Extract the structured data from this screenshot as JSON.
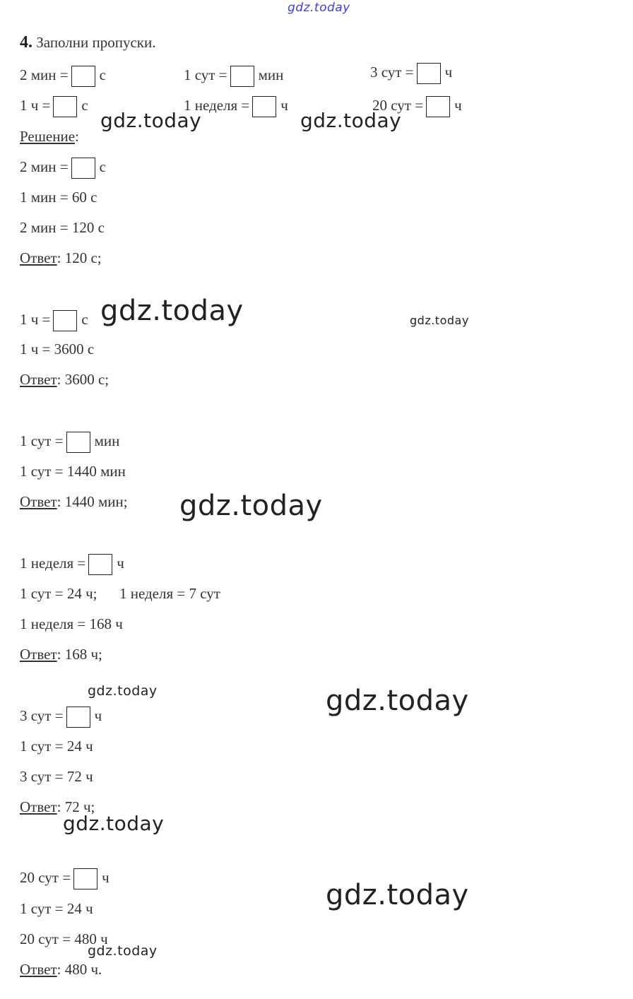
{
  "watermark_text": "gdz.today",
  "task": {
    "number": "4.",
    "title": " Заполни пропуски."
  },
  "exercise": [
    {
      "left": "2 мин =",
      "right": "с"
    },
    {
      "left": "1 сут =",
      "right": "мин"
    },
    {
      "left": "3 сут =",
      "right": "ч"
    },
    {
      "left": "1 ч =",
      "right": "с"
    },
    {
      "left": "1 неделя =",
      "right": "ч"
    },
    {
      "left": "20 сут =",
      "right": "ч"
    }
  ],
  "solution_label": "Решение",
  "solution_colon": ":",
  "answer_label": "Ответ",
  "solutions": [
    {
      "question": {
        "left": "2 мин =",
        "right": "с"
      },
      "steps": [
        "1 мин = 60 с",
        "2 мин = 120 с"
      ],
      "answer": ": 120 с;"
    },
    {
      "question": {
        "left": "1 ч =",
        "right": "с"
      },
      "steps": [
        "1 ч = 3600 с"
      ],
      "answer": ": 3600 с;"
    },
    {
      "question": {
        "left": "1 сут =",
        "right": "мин"
      },
      "steps": [
        "1 сут = 1440 мин"
      ],
      "answer": ": 1440 мин;"
    },
    {
      "question": {
        "left": "1 неделя =",
        "right": "ч"
      },
      "steps": [
        "1 сут = 24 ч;      1 неделя = 7 сут",
        "1 неделя = 168 ч"
      ],
      "answer": ": 168 ч;"
    },
    {
      "question": {
        "left": "3 сут =",
        "right": "ч"
      },
      "steps": [
        "1 сут = 24 ч",
        "3 сут = 72 ч"
      ],
      "answer": ": 72 ч;"
    },
    {
      "question": {
        "left": "20 сут =",
        "right": "ч"
      },
      "steps": [
        "1 сут = 24 ч",
        "20 сут = 480 ч"
      ],
      "answer": ": 480 ч."
    }
  ]
}
